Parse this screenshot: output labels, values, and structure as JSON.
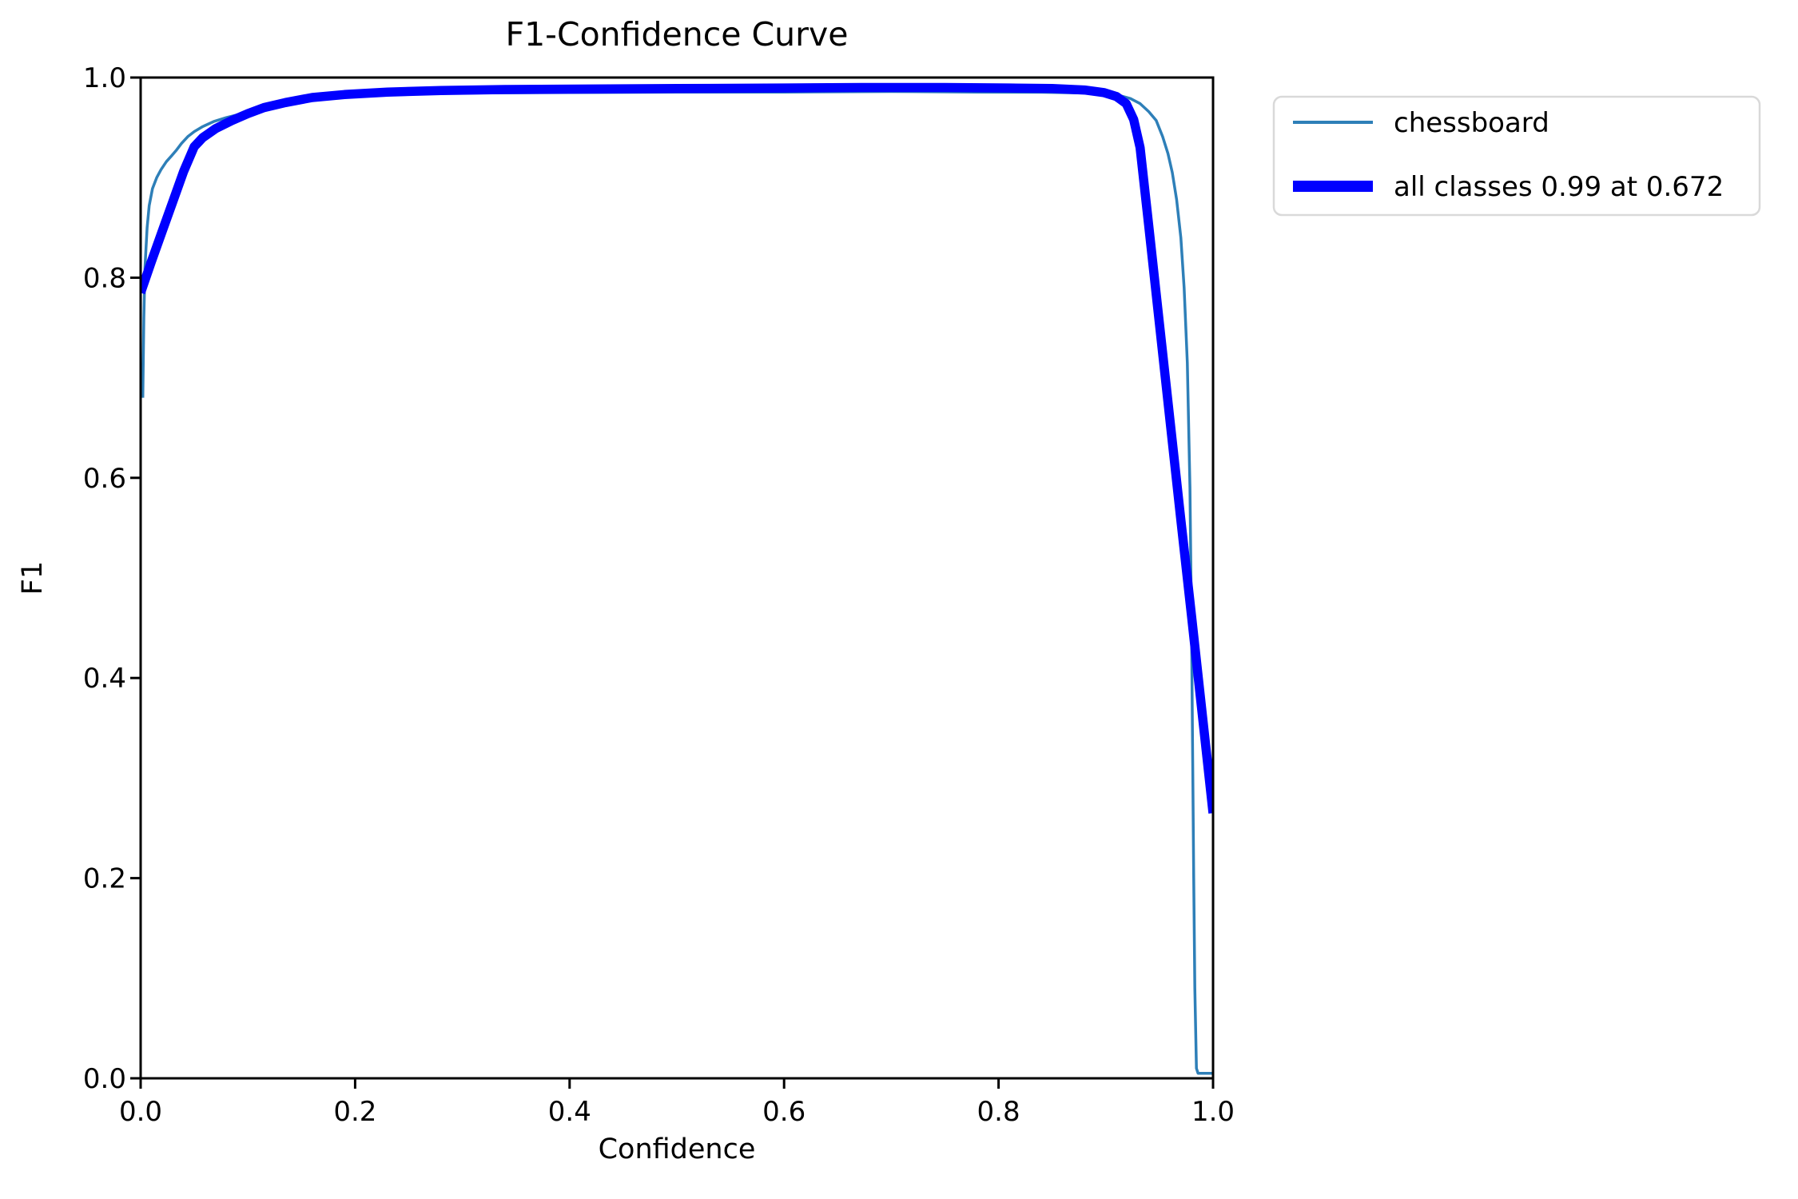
{
  "figure": {
    "background_color": "#ffffff",
    "text_color": "#000000",
    "spine_color": "#000000",
    "legend_border_color": "#d9d9d9"
  },
  "chart_data": {
    "type": "line",
    "title": "F1-Confidence Curve",
    "xlabel": "Confidence",
    "ylabel": "F1",
    "xlim": [
      0.0,
      1.0
    ],
    "ylim": [
      0.0,
      1.0
    ],
    "grid": false,
    "x_tick_labels": [
      "0.0",
      "0.2",
      "0.4",
      "0.6",
      "0.8",
      "1.0"
    ],
    "y_tick_labels": [
      "0.0",
      "0.2",
      "0.4",
      "0.6",
      "0.8",
      "1.0"
    ],
    "best_f1": "0.99",
    "best_confidence": "0.672",
    "legend": {
      "position": "upper-right-outside",
      "entries": [
        {
          "label": "chessboard",
          "color": "#2e7fb8",
          "line_width": 4
        },
        {
          "label": "all classes 0.99 at 0.672",
          "color": "#0000ff",
          "line_width": 14
        }
      ]
    },
    "series": [
      {
        "name": "chessboard",
        "color": "#2e7fb8",
        "stroke_width": 3.5,
        "points": [
          [
            0.002,
            0.68
          ],
          [
            0.003,
            0.76
          ],
          [
            0.004,
            0.81
          ],
          [
            0.006,
            0.85
          ],
          [
            0.008,
            0.872
          ],
          [
            0.011,
            0.889
          ],
          [
            0.015,
            0.9
          ],
          [
            0.019,
            0.908
          ],
          [
            0.024,
            0.916
          ],
          [
            0.029,
            0.922
          ],
          [
            0.033,
            0.927
          ],
          [
            0.038,
            0.934
          ],
          [
            0.044,
            0.941
          ],
          [
            0.05,
            0.946
          ],
          [
            0.058,
            0.951
          ],
          [
            0.068,
            0.956
          ],
          [
            0.08,
            0.96
          ],
          [
            0.095,
            0.964
          ],
          [
            0.11,
            0.968
          ],
          [
            0.13,
            0.973
          ],
          [
            0.155,
            0.977
          ],
          [
            0.18,
            0.98
          ],
          [
            0.21,
            0.982
          ],
          [
            0.25,
            0.9835
          ],
          [
            0.3,
            0.9845
          ],
          [
            0.4,
            0.985
          ],
          [
            0.5,
            0.9855
          ],
          [
            0.6,
            0.9855
          ],
          [
            0.7,
            0.986
          ],
          [
            0.78,
            0.9855
          ],
          [
            0.84,
            0.9853
          ],
          [
            0.88,
            0.9845
          ],
          [
            0.9,
            0.9835
          ],
          [
            0.913,
            0.982
          ],
          [
            0.923,
            0.979
          ],
          [
            0.932,
            0.974
          ],
          [
            0.94,
            0.966
          ],
          [
            0.947,
            0.957
          ],
          [
            0.953,
            0.941
          ],
          [
            0.958,
            0.924
          ],
          [
            0.962,
            0.905
          ],
          [
            0.966,
            0.878
          ],
          [
            0.97,
            0.84
          ],
          [
            0.973,
            0.79
          ],
          [
            0.976,
            0.715
          ],
          [
            0.9785,
            0.59
          ],
          [
            0.98,
            0.44
          ],
          [
            0.981,
            0.32
          ],
          [
            0.982,
            0.2
          ],
          [
            0.983,
            0.09
          ],
          [
            0.9845,
            0.01
          ],
          [
            0.986,
            0.005
          ],
          [
            1.0,
            0.005
          ]
        ]
      },
      {
        "name": "all classes",
        "color": "#0000ff",
        "stroke_width": 11.5,
        "points": [
          [
            0.0,
            0.785
          ],
          [
            0.01,
            0.816
          ],
          [
            0.02,
            0.846
          ],
          [
            0.03,
            0.876
          ],
          [
            0.04,
            0.906
          ],
          [
            0.05,
            0.931
          ],
          [
            0.058,
            0.94
          ],
          [
            0.07,
            0.949
          ],
          [
            0.085,
            0.957
          ],
          [
            0.1,
            0.964
          ],
          [
            0.115,
            0.97
          ],
          [
            0.135,
            0.975
          ],
          [
            0.16,
            0.98
          ],
          [
            0.19,
            0.983
          ],
          [
            0.23,
            0.9855
          ],
          [
            0.28,
            0.987
          ],
          [
            0.34,
            0.988
          ],
          [
            0.42,
            0.9885
          ],
          [
            0.5,
            0.989
          ],
          [
            0.6,
            0.9895
          ],
          [
            0.672,
            0.99
          ],
          [
            0.75,
            0.99
          ],
          [
            0.81,
            0.9895
          ],
          [
            0.85,
            0.989
          ],
          [
            0.88,
            0.9875
          ],
          [
            0.898,
            0.985
          ],
          [
            0.91,
            0.981
          ],
          [
            0.919,
            0.974
          ],
          [
            0.926,
            0.958
          ],
          [
            0.932,
            0.93
          ],
          [
            0.94,
            0.852
          ],
          [
            0.95,
            0.754
          ],
          [
            0.96,
            0.656
          ],
          [
            0.97,
            0.558
          ],
          [
            0.98,
            0.461
          ],
          [
            0.99,
            0.363
          ],
          [
            1.0,
            0.265
          ]
        ]
      }
    ]
  }
}
